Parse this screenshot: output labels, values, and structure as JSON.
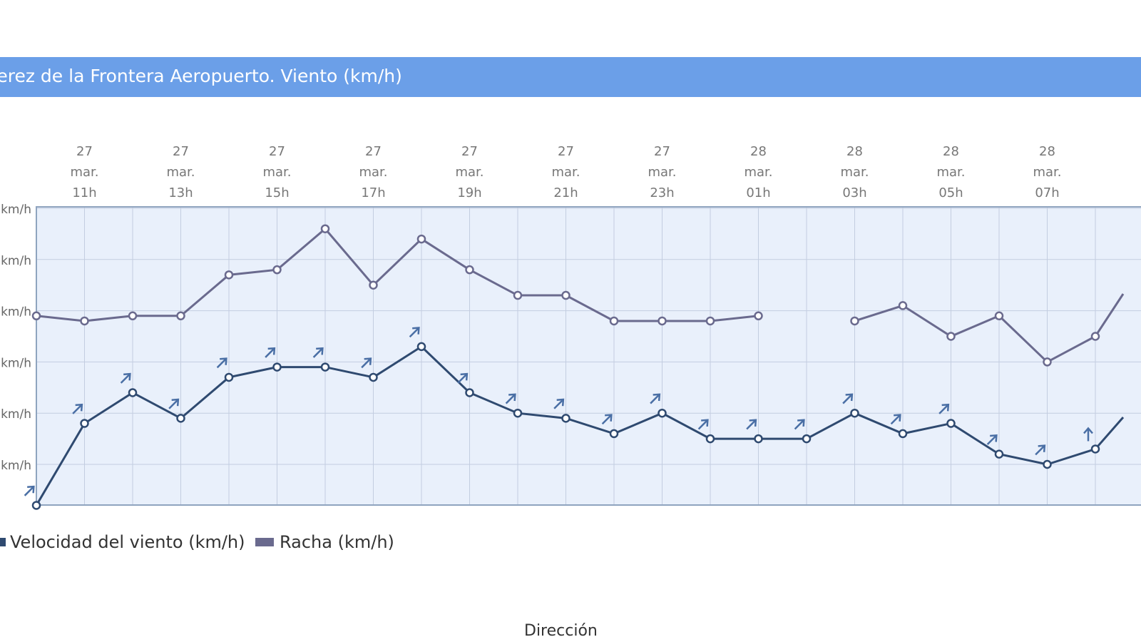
{
  "header": {
    "title": "Jerez de la Frontera Aeropuerto. Viento (km/h)"
  },
  "footer": {
    "next_section": "Dirección"
  },
  "colors": {
    "title_bar": "#6b9fe8",
    "speed": "#2f4a70",
    "gust": "#6a6a8e",
    "arrow": "#4a6fa5",
    "plot_bg": "#e9f0fb"
  },
  "chart_data": {
    "type": "line",
    "title": "Jerez de la Frontera Aeropuerto. Viento (km/h)",
    "x": [
      "27 mar. 10h",
      "27 mar. 11h",
      "27 mar. 12h",
      "27 mar. 13h",
      "27 mar. 14h",
      "27 mar. 15h",
      "27 mar. 16h",
      "27 mar. 17h",
      "27 mar. 18h",
      "27 mar. 19h",
      "27 mar. 20h",
      "27 mar. 21h",
      "27 mar. 22h",
      "27 mar. 23h",
      "28 mar. 00h",
      "28 mar. 01h",
      "28 mar. 02h",
      "28 mar. 03h",
      "28 mar. 04h",
      "28 mar. 05h",
      "28 mar. 06h",
      "28 mar. 07h",
      "28 mar. 08h"
    ],
    "x_ticks": [
      {
        "day": "27",
        "month": "mar.",
        "hour": "11h"
      },
      {
        "day": "27",
        "month": "mar.",
        "hour": "13h"
      },
      {
        "day": "27",
        "month": "mar.",
        "hour": "15h"
      },
      {
        "day": "27",
        "month": "mar.",
        "hour": "17h"
      },
      {
        "day": "27",
        "month": "mar.",
        "hour": "19h"
      },
      {
        "day": "27",
        "month": "mar.",
        "hour": "21h"
      },
      {
        "day": "27",
        "month": "mar.",
        "hour": "23h"
      },
      {
        "day": "28",
        "month": "mar.",
        "hour": "01h"
      },
      {
        "day": "28",
        "month": "mar.",
        "hour": "03h"
      },
      {
        "day": "28",
        "month": "mar.",
        "hour": "05h"
      },
      {
        "day": "28",
        "month": "mar.",
        "hour": "07h"
      }
    ],
    "y_tick_labels": [
      "km/h",
      "km/h",
      "km/h",
      "km/h",
      "km/h",
      "km/h"
    ],
    "y_tick_values": [
      60,
      50,
      40,
      30,
      20,
      10
    ],
    "ylim": [
      2,
      60
    ],
    "grid": true,
    "legend_position": "bottom-left",
    "series": [
      {
        "name": "Velocidad del viento (km/h)",
        "values": [
          2,
          18,
          24,
          19,
          27,
          29,
          29,
          27,
          33,
          24,
          20,
          19,
          16,
          20,
          15,
          15,
          15,
          20,
          16,
          18,
          12,
          10,
          13
        ],
        "direction_deg": [
          45,
          45,
          45,
          45,
          45,
          45,
          45,
          45,
          45,
          45,
          45,
          45,
          45,
          45,
          45,
          45,
          45,
          45,
          45,
          45,
          45,
          45,
          0
        ]
      },
      {
        "name": "Racha (km/h)",
        "values": [
          39,
          38,
          39,
          39,
          47,
          48,
          56,
          45,
          54,
          48,
          43,
          43,
          38,
          38,
          38,
          39,
          null,
          38,
          41,
          35,
          39,
          30,
          35
        ]
      }
    ]
  }
}
